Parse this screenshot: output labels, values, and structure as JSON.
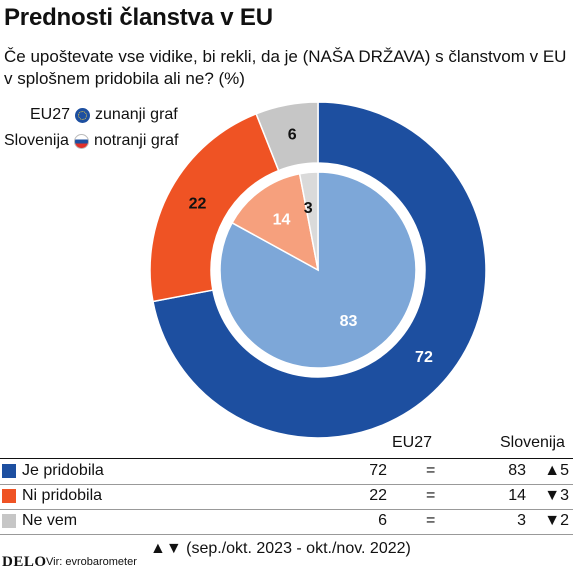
{
  "title": "Prednosti članstva v EU",
  "subtitle": "Če upoštevate vse vidike, bi rekli, da je (NAŠA DRŽAVA) s članstvom v EU v splošnem pridobila ali ne? (%)",
  "legend": {
    "outer_name": "EU27",
    "outer_desc": "zunanji graf",
    "inner_name": "Slovenija",
    "inner_desc": "notranji graf"
  },
  "icons": {
    "eu": "eu-flag-icon",
    "si": "slovenia-flag-icon"
  },
  "colors": {
    "outer": [
      "#1d4fa0",
      "#ef5324",
      "#c6c6c6"
    ],
    "inner": [
      "#7da7d8",
      "#f6a07d",
      "#dadada"
    ]
  },
  "chart_data": {
    "type": "pie",
    "title": "Prednosti članstva v EU",
    "categories": [
      "Je pridobila",
      "Ni pridobila",
      "Ne vem"
    ],
    "series": [
      {
        "name": "EU27",
        "values": [
          72,
          22,
          6
        ]
      },
      {
        "name": "Slovenija",
        "values": [
          83,
          14,
          3
        ]
      }
    ],
    "labels": {
      "outer": [
        "72",
        "22",
        "6"
      ],
      "inner": [
        "83",
        "14",
        "3"
      ]
    }
  },
  "table": {
    "col_eu": "EU27",
    "col_si": "Slovenija",
    "rows": [
      {
        "label": "Je pridobila",
        "eu": "72",
        "eq": "=",
        "si": "83",
        "change": "▲5"
      },
      {
        "label": "Ni pridobila",
        "eu": "22",
        "eq": "=",
        "si": "14",
        "change": "▼3"
      },
      {
        "label": "Ne vem",
        "eu": "6",
        "eq": "=",
        "si": "3",
        "change": "▼2"
      }
    ]
  },
  "footer": {
    "logo": "DELO",
    "source": "Vir: evrobarometer",
    "period": "▲▼ (sep./okt. 2023 - okt./nov. 2022)"
  }
}
